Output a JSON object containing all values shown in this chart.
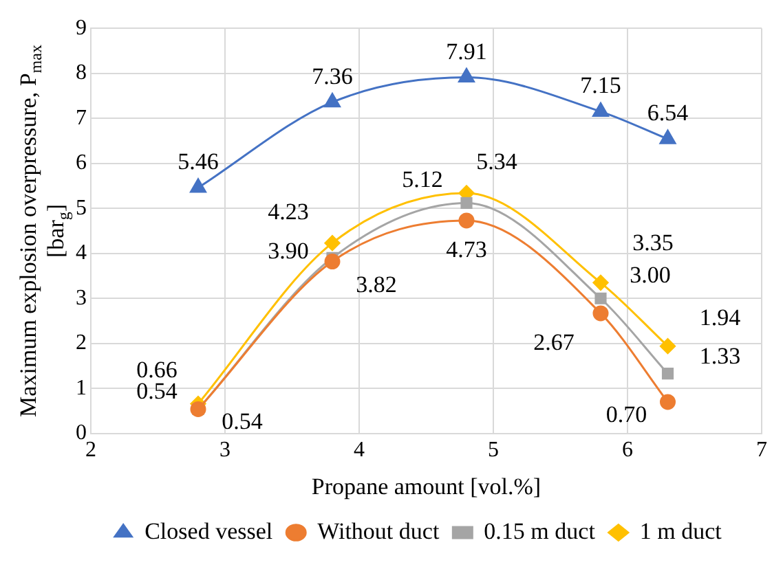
{
  "chart_data": {
    "type": "line",
    "xlabel": "Propane amount [vol.%]",
    "ylabel": "Maximum explosion overpressure, P$_{max}$ [bar$_{g}$]",
    "x": [
      2.8,
      3.8,
      4.8,
      5.8,
      6.3
    ],
    "series": [
      {
        "name": "Closed vessel",
        "color": "#4472c4",
        "marker": "triangle",
        "values": [
          5.46,
          7.36,
          7.91,
          7.15,
          6.54
        ],
        "value_labels": [
          "5.46",
          "7.36",
          "7.91",
          "7.15",
          "6.54"
        ]
      },
      {
        "name": "Without duct",
        "color": "#ed7d31",
        "marker": "circle",
        "values": [
          0.54,
          3.82,
          4.73,
          2.67,
          0.7
        ],
        "value_labels": [
          "0.54",
          "3.82",
          "4.73",
          "2.67",
          "0.70"
        ]
      },
      {
        "name": "0.15 m duct",
        "color": "#a5a5a5",
        "marker": "square",
        "values": [
          0.54,
          3.9,
          5.12,
          3.0,
          1.33
        ],
        "value_labels": [
          "0.54",
          "3.90",
          "5.12",
          "3.00",
          "1.33"
        ]
      },
      {
        "name": "1 m duct",
        "color": "#ffc000",
        "marker": "diamond",
        "values": [
          0.66,
          4.23,
          5.34,
          3.35,
          1.94
        ],
        "value_labels": [
          "0.66",
          "4.23",
          "5.34",
          "3.35",
          "1.94"
        ]
      }
    ],
    "xlim": [
      2,
      7
    ],
    "xticks": [
      2,
      3,
      4,
      5,
      6,
      7
    ],
    "ylim": [
      0,
      9
    ],
    "yticks": [
      0,
      1,
      2,
      3,
      4,
      5,
      6,
      7,
      8,
      9
    ],
    "grid": true,
    "legend": "bottom",
    "line_style": "solid"
  }
}
